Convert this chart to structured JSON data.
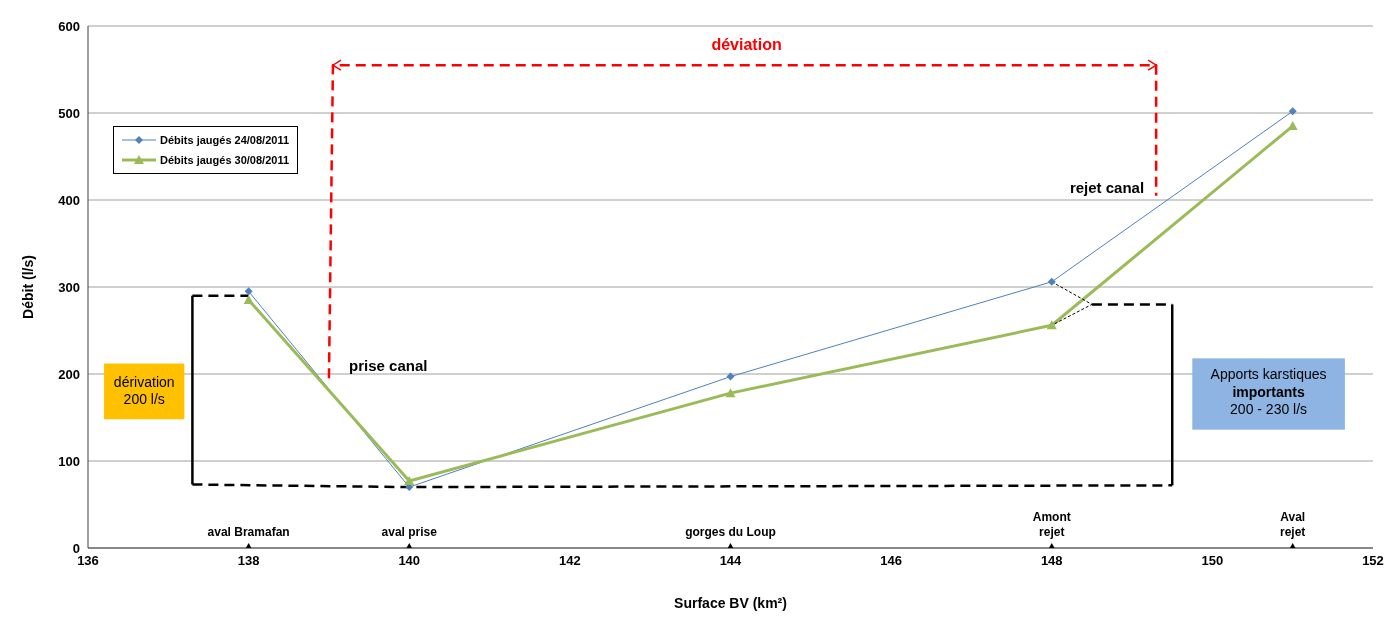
{
  "chart_data": {
    "type": "line",
    "xlabel": "Surface BV (km²)",
    "ylabel": "Débit (l/s)",
    "xlim": [
      136,
      152
    ],
    "xticks": [
      136,
      138,
      140,
      142,
      144,
      146,
      148,
      150,
      152
    ],
    "ylim": [
      0,
      600
    ],
    "yticks": [
      0,
      100,
      200,
      300,
      400,
      500,
      600
    ],
    "grid": "y",
    "legend": "top left",
    "line_style": "solid",
    "x": [
      138,
      140,
      144,
      148,
      151
    ],
    "series": [
      {
        "name": "Débits jaugés 24/08/2011",
        "color": "#4f81bd",
        "values": [
          295,
          70,
          197,
          306,
          502
        ],
        "marker": "diamond"
      },
      {
        "name": "Débits jaugés 30/08/2011",
        "color": "#9bbb59",
        "values": [
          285,
          77,
          178,
          256,
          485
        ],
        "marker": "triangle"
      },
      {
        "type": "scatter",
        "color": "#000000",
        "values": [
          0,
          0,
          0,
          0,
          0
        ],
        "marker": "triangle"
      },
      {
        "color": "#ff0000",
        "x": [
          139,
          139.05,
          149.3,
          149.3
        ],
        "values": [
          195,
          555,
          555,
          405
        ],
        "line_style": "dashed"
      },
      {
        "color": "#000000",
        "x": [
          137.3,
          138
        ],
        "values": [
          290,
          290
        ],
        "line_style": "dashed"
      },
      {
        "color": "#000000",
        "x": [
          137.3,
          140,
          149.5
        ],
        "values": [
          73,
          70,
          72
        ],
        "line_style": "dashed"
      },
      {
        "color": "#000000",
        "x": [
          148.5,
          149.5
        ],
        "values": [
          280,
          280
        ],
        "line_style": "dashed"
      },
      {
        "color": "#000000",
        "x": [
          137.3,
          137.3
        ],
        "values": [
          290,
          73
        ]
      },
      {
        "color": "#000000",
        "x": [
          149.5,
          149.5
        ],
        "values": [
          280,
          72
        ]
      },
      {
        "color": "#000000",
        "x": [
          148,
          148.5,
          148
        ],
        "values": [
          306,
          280,
          256
        ],
        "line_style": "dotted"
      }
    ],
    "annotations": [
      {
        "text": "aval Bramafan",
        "x": 138,
        "y": 0
      },
      {
        "text": "aval prise",
        "x": 140,
        "y": 0
      },
      {
        "text": "gorges  du Loup",
        "x": 144,
        "y": 0
      },
      {
        "text": "Amont\nrejet",
        "x": 148,
        "y": 0
      },
      {
        "text": "Aval\nrejet",
        "x": 151,
        "y": 0
      },
      "déviation",
      "prise canal",
      "rejet canal",
      "dérivation\n200 l/s",
      "Apports karstiques\nimportants\n200 - 230 l/s"
    ]
  }
}
